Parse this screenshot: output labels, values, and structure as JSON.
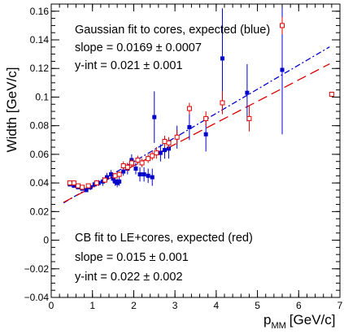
{
  "chart_data": {
    "type": "scatter",
    "title": "",
    "xlabel": "p",
    "xlabel_sub": "MM",
    "xlabel_unit": "[GeV/c]",
    "ylabel": "Width [GeV/c]",
    "xlim": [
      0,
      7
    ],
    "ylim": [
      -0.04,
      0.165
    ],
    "x_ticks": [
      0,
      1,
      2,
      3,
      4,
      5,
      6,
      7
    ],
    "x_tick_labels": [
      "0",
      "1",
      "2",
      "3",
      "4",
      "5",
      "6",
      "7"
    ],
    "y_ticks": [
      -0.04,
      -0.02,
      0,
      0.02,
      0.04,
      0.06,
      0.08,
      0.1,
      0.12,
      0.14,
      0.16
    ],
    "y_tick_labels": [
      "−0.04",
      "−0.02",
      "0",
      "0.02",
      "0.04",
      "0.06",
      "0.08",
      "0.1",
      "0.12",
      "0.14",
      "0.16"
    ],
    "grid": false,
    "legend": "none",
    "colors": {
      "blue": "#0000cc",
      "red": "#dd0000"
    },
    "series": [
      {
        "marker": "filled-square",
        "color": "#0000cc",
        "points": [
          {
            "x": 0.45,
            "y": 0.039,
            "err": 0.001
          },
          {
            "x": 0.55,
            "y": 0.038,
            "err": 0.001
          },
          {
            "x": 0.65,
            "y": 0.037,
            "err": 0.001
          },
          {
            "x": 0.75,
            "y": 0.036,
            "err": 0.001
          },
          {
            "x": 0.85,
            "y": 0.035,
            "err": 0.001
          },
          {
            "x": 0.95,
            "y": 0.037,
            "err": 0.002
          },
          {
            "x": 1.05,
            "y": 0.039,
            "err": 0.002
          },
          {
            "x": 1.15,
            "y": 0.04,
            "err": 0.002
          },
          {
            "x": 1.25,
            "y": 0.041,
            "err": 0.003
          },
          {
            "x": 1.35,
            "y": 0.044,
            "err": 0.003
          },
          {
            "x": 1.45,
            "y": 0.046,
            "err": 0.003
          },
          {
            "x": 1.5,
            "y": 0.043,
            "err": 0.003
          },
          {
            "x": 1.55,
            "y": 0.041,
            "err": 0.003
          },
          {
            "x": 1.6,
            "y": 0.04,
            "err": 0.003
          },
          {
            "x": 1.65,
            "y": 0.041,
            "err": 0.003
          },
          {
            "x": 1.75,
            "y": 0.048,
            "err": 0.003
          },
          {
            "x": 1.85,
            "y": 0.05,
            "err": 0.004
          },
          {
            "x": 1.95,
            "y": 0.056,
            "err": 0.004
          },
          {
            "x": 2.05,
            "y": 0.05,
            "err": 0.004
          },
          {
            "x": 2.15,
            "y": 0.046,
            "err": 0.005
          },
          {
            "x": 2.25,
            "y": 0.046,
            "err": 0.005
          },
          {
            "x": 2.35,
            "y": 0.045,
            "err": 0.005
          },
          {
            "x": 2.45,
            "y": 0.044,
            "err": 0.006
          },
          {
            "x": 2.5,
            "y": 0.086,
            "err": 0.018
          },
          {
            "x": 2.65,
            "y": 0.061,
            "err": 0.006
          },
          {
            "x": 2.75,
            "y": 0.063,
            "err": 0.006
          },
          {
            "x": 2.85,
            "y": 0.064,
            "err": 0.007
          },
          {
            "x": 3.05,
            "y": 0.072,
            "err": 0.008
          },
          {
            "x": 3.35,
            "y": 0.079,
            "err": 0.009
          },
          {
            "x": 3.75,
            "y": 0.074,
            "err": 0.012
          },
          {
            "x": 4.15,
            "y": 0.127,
            "err": 0.035
          },
          {
            "x": 4.75,
            "y": 0.103,
            "err": 0.02
          },
          {
            "x": 5.6,
            "y": 0.119,
            "err": 0.045
          }
        ]
      },
      {
        "marker": "open-square",
        "color": "#dd0000",
        "points": [
          {
            "x": 0.45,
            "y": 0.04,
            "err": 0.001
          },
          {
            "x": 0.55,
            "y": 0.04,
            "err": 0.001
          },
          {
            "x": 0.65,
            "y": 0.038,
            "err": 0.001
          },
          {
            "x": 0.75,
            "y": 0.037,
            "err": 0.001
          },
          {
            "x": 0.9,
            "y": 0.038,
            "err": 0.001
          },
          {
            "x": 1.1,
            "y": 0.04,
            "err": 0.002
          },
          {
            "x": 1.3,
            "y": 0.042,
            "err": 0.002
          },
          {
            "x": 1.55,
            "y": 0.045,
            "err": 0.002
          },
          {
            "x": 1.65,
            "y": 0.046,
            "err": 0.002
          },
          {
            "x": 1.75,
            "y": 0.052,
            "err": 0.003
          },
          {
            "x": 1.85,
            "y": 0.051,
            "err": 0.003
          },
          {
            "x": 1.95,
            "y": 0.054,
            "err": 0.003
          },
          {
            "x": 2.1,
            "y": 0.056,
            "err": 0.003
          },
          {
            "x": 2.2,
            "y": 0.054,
            "err": 0.003
          },
          {
            "x": 2.35,
            "y": 0.057,
            "err": 0.003
          },
          {
            "x": 2.45,
            "y": 0.059,
            "err": 0.003
          },
          {
            "x": 2.55,
            "y": 0.061,
            "err": 0.004
          },
          {
            "x": 2.75,
            "y": 0.069,
            "err": 0.004
          },
          {
            "x": 2.85,
            "y": 0.068,
            "err": 0.004
          },
          {
            "x": 3.05,
            "y": 0.072,
            "err": 0.005
          },
          {
            "x": 3.35,
            "y": 0.092,
            "err": 0.004
          },
          {
            "x": 3.75,
            "y": 0.085,
            "err": 0.005
          },
          {
            "x": 4.15,
            "y": 0.096,
            "err": 0.008
          },
          {
            "x": 4.8,
            "y": 0.085,
            "err": 0.009
          },
          {
            "x": 5.6,
            "y": 0.15,
            "err": 0.006
          },
          {
            "x": 6.8,
            "y": 0.102,
            "err": 0.0
          }
        ]
      }
    ],
    "fit_lines": [
      {
        "color": "#0000cc",
        "style": "dash-dot",
        "slope": 0.0169,
        "intercept": 0.021,
        "x_range": [
          0.3,
          6.75
        ]
      },
      {
        "color": "#dd0000",
        "style": "dashed",
        "slope": 0.015,
        "intercept": 0.022,
        "x_range": [
          0.3,
          6.75
        ]
      }
    ],
    "annotations": {
      "top": [
        "Gaussian fit to cores, expected (blue)",
        "slope = 0.0169 ± 0.0007",
        "y-int = 0.021 ± 0.001"
      ],
      "bottom": [
        "CB fit to LE+cores, expected (red)",
        "slope = 0.015 ± 0.001",
        "y-int = 0.022 ± 0.002"
      ]
    }
  }
}
